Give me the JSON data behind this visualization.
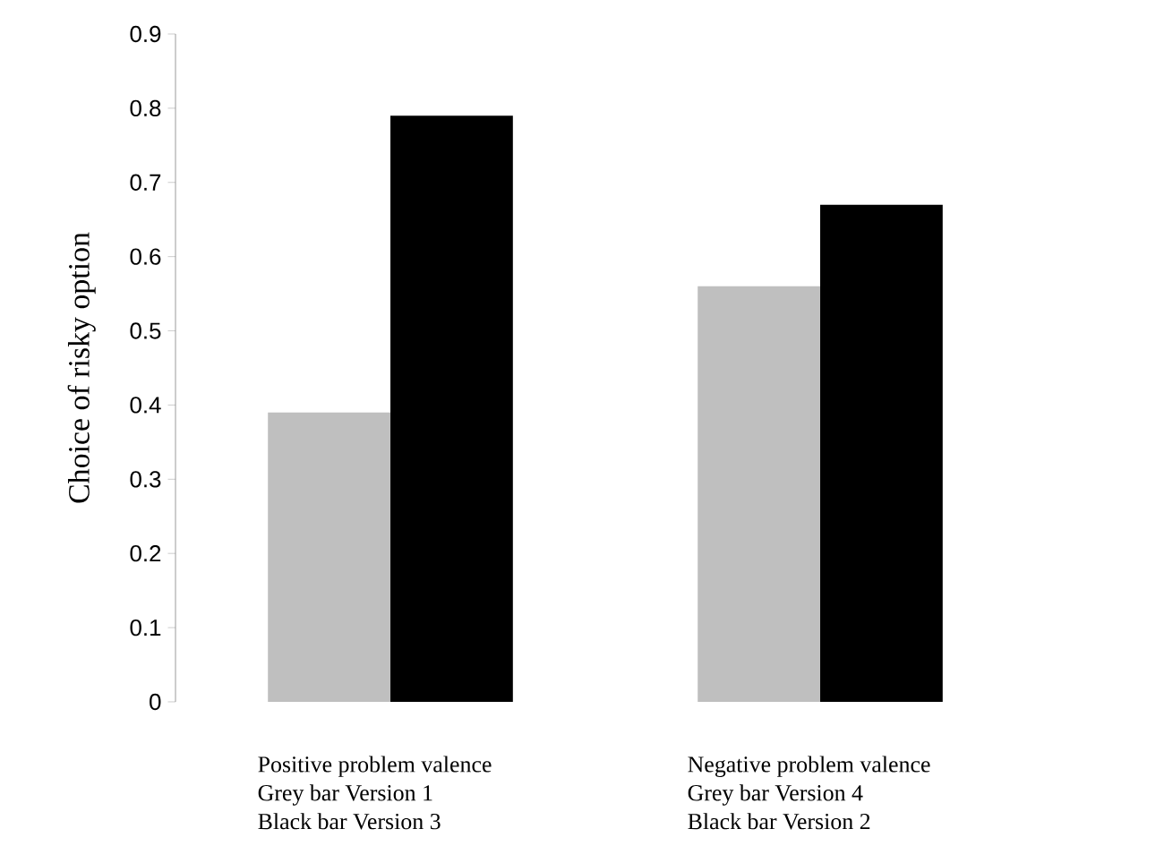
{
  "chart_data": {
    "type": "bar",
    "ylabel": "Choice of risky option",
    "categories": [
      "Positive problem valence",
      "Negative problem valence"
    ],
    "series": [
      {
        "color": "#bfbfbf",
        "values": [
          0.39,
          0.56
        ]
      },
      {
        "color": "#000000",
        "values": [
          0.79,
          0.67
        ]
      }
    ],
    "annotations": [
      "Grey bar Version 1",
      "Black bar Version 3",
      "Grey bar Version 4",
      "Black bar Version 2"
    ],
    "ylim": [
      0,
      0.9
    ],
    "yticks": [
      0,
      0.1,
      0.2,
      0.3,
      0.4,
      0.5,
      0.6,
      0.7,
      0.8,
      0.9
    ]
  }
}
